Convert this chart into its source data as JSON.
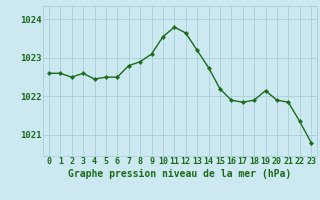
{
  "hours": [
    0,
    1,
    2,
    3,
    4,
    5,
    6,
    7,
    8,
    9,
    10,
    11,
    12,
    13,
    14,
    15,
    16,
    17,
    18,
    19,
    20,
    21,
    22,
    23
  ],
  "pressure": [
    1022.6,
    1022.6,
    1022.5,
    1022.6,
    1022.45,
    1022.5,
    1022.5,
    1022.8,
    1022.9,
    1023.1,
    1023.55,
    1023.8,
    1023.65,
    1023.2,
    1022.75,
    1022.2,
    1021.9,
    1021.85,
    1021.9,
    1022.15,
    1021.9,
    1021.85,
    1021.35,
    1020.8
  ],
  "line_color": "#1a6b1a",
  "marker": "D",
  "marker_size": 2.2,
  "bg_color": "#cce8f0",
  "grid_color": "#aacfdb",
  "title": "Graphe pression niveau de la mer (hPa)",
  "ylabel_ticks": [
    1021,
    1022,
    1023,
    1024
  ],
  "ylim": [
    1020.45,
    1024.35
  ],
  "xlim": [
    -0.5,
    23.5
  ],
  "tick_fontsize": 6.0,
  "xlabel_fontsize": 7.0,
  "ytick_fontsize": 6.5
}
